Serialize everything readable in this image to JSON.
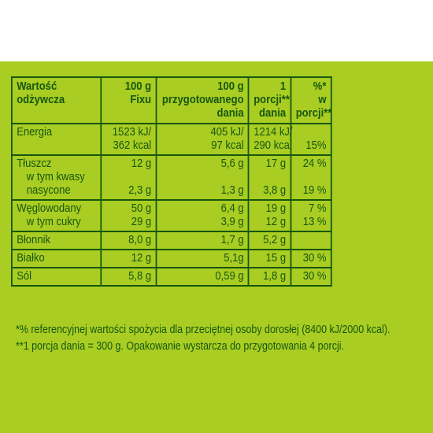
{
  "colors": {
    "background": "#a9cd22",
    "text": "#17570f",
    "page": "#ffffff"
  },
  "header": {
    "col1_line1": "Wartość",
    "col1_line2": "odżywcza",
    "col2_line1": "100 g",
    "col2_line2": "Fixu",
    "col3_line1": "100 g",
    "col3_line2": "przygotowanego",
    "col3_line3": "dania",
    "col4_line1": "1",
    "col4_line2": "porcji**",
    "col4_line3": "dania",
    "col5_line1": "%*",
    "col5_line2": "w",
    "col5_line3": "porcji**"
  },
  "rows": {
    "energia": {
      "label": "Energia",
      "fix_line1": "1523 kJ/",
      "fix_line2": "362 kcal",
      "dish_line1": "405 kJ/",
      "dish_line2": "97 kcal",
      "portion_line1": "1214 kJ/",
      "portion_line2": "290 kcal",
      "pct": "15%"
    },
    "tluszcz": {
      "label": "Tłuszcz",
      "fix": "12 g",
      "dish": "5,6 g",
      "portion": "17 g",
      "pct": "24 %",
      "sub_line1": "w tym kwasy",
      "sub_line2": "nasycone",
      "sub_fix": "2,3 g",
      "sub_dish": "1,3 g",
      "sub_portion": "3,8 g",
      "sub_pct": "19 %"
    },
    "weglowodany": {
      "label": "Węglowodany",
      "fix": "50 g",
      "dish": "6,4 g",
      "portion": "19 g",
      "pct": "7 %",
      "sub": "w tym cukry",
      "sub_fix": "29 g",
      "sub_dish": "3,9 g",
      "sub_portion": "12 g",
      "sub_pct": "13 %"
    },
    "blonnik": {
      "label": "Błonnik",
      "fix": "8,0 g",
      "dish": "1,7 g",
      "portion": "5,2 g",
      "pct": ""
    },
    "bialko": {
      "label": "Białko",
      "fix": "12 g",
      "dish": "5,1g",
      "portion": "15 g",
      "pct": "30 %"
    },
    "sol": {
      "label": "Sól",
      "fix": "5,8 g",
      "dish": "0,59 g",
      "portion": "1,8 g",
      "pct": "30 %"
    }
  },
  "footnotes": {
    "line1": "*% referencyjnej wartości spożycia dla przeciętnej osoby dorosłej (8400 kJ/2000 kcal).",
    "line2": "**1 porcja dania = 300 g. Opakowanie wystarcza do przygotowania 4 porcji."
  }
}
